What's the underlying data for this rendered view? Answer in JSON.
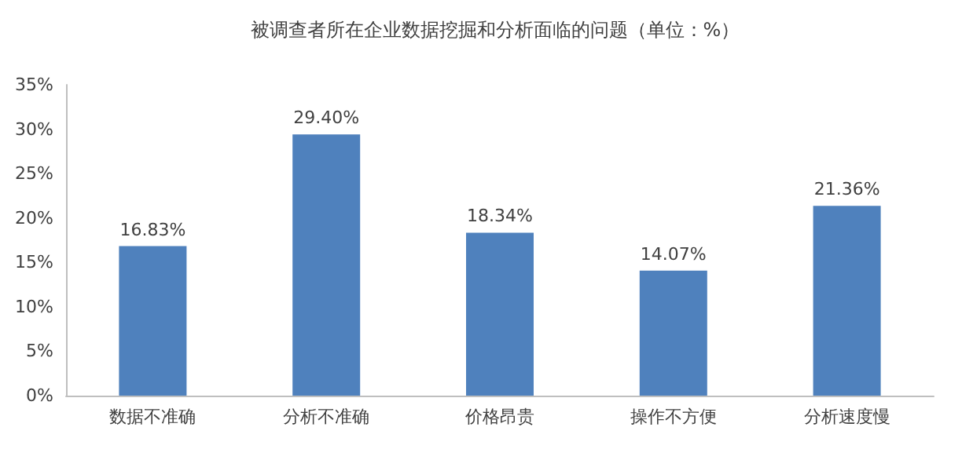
{
  "chart_data": {
    "type": "bar",
    "title": "被调查者所在企业数据挖掘和分析面临的问题（单位：%）",
    "categories": [
      "数据不准确",
      "分析不准确",
      "价格昂贵",
      "操作不方便",
      "分析速度慢"
    ],
    "values": [
      16.83,
      29.4,
      18.34,
      14.07,
      21.36
    ],
    "value_labels": [
      "16.83%",
      "29.40%",
      "18.34%",
      "14.07%",
      "21.36%"
    ],
    "color": "#4f81bd",
    "ylim": [
      0,
      35
    ],
    "yticks": [
      {
        "value": 0,
        "label": "0%"
      },
      {
        "value": 5,
        "label": "5%"
      },
      {
        "value": 10,
        "label": "10%"
      },
      {
        "value": 15,
        "label": "15%"
      },
      {
        "value": 20,
        "label": "20%"
      },
      {
        "value": 25,
        "label": "25%"
      },
      {
        "value": 30,
        "label": "30%"
      },
      {
        "value": 35,
        "label": "35%"
      }
    ],
    "grid": false
  }
}
